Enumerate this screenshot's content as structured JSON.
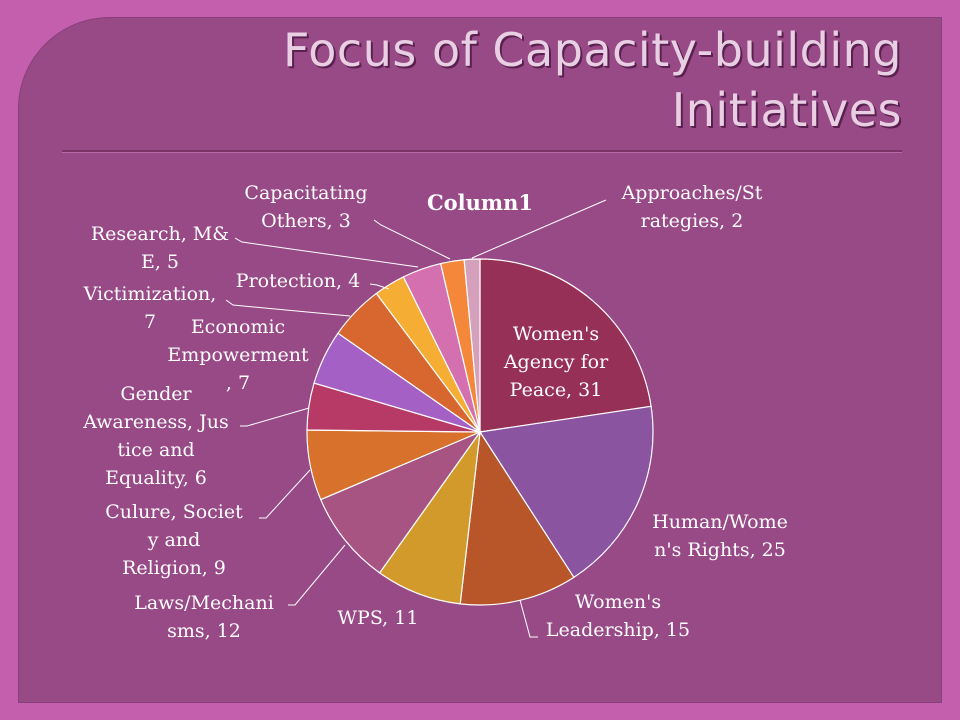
{
  "slide": {
    "title_line1": "Focus of Capacity-building",
    "title_line2": "Initiatives"
  },
  "chart_data": {
    "type": "pie",
    "title": "Column1",
    "slices": [
      {
        "label": "Women's Agency for Peace",
        "value": 31,
        "color": "#963057",
        "label_lines": [
          "Women's",
          "Agency for",
          "Peace, 31"
        ]
      },
      {
        "label": "Human/Women's Rights",
        "value": 25,
        "color": "#8a54a0",
        "label_lines": [
          "Human/Wome",
          "n's Rights, 25"
        ]
      },
      {
        "label": "Women's Leadership",
        "value": 15,
        "color": "#b85529",
        "label_lines": [
          "Women's",
          "Leadership, 15"
        ]
      },
      {
        "label": "WPS",
        "value": 11,
        "color": "#d29a2b",
        "label_lines": [
          "WPS, 11"
        ]
      },
      {
        "label": "Laws/Mechanisms",
        "value": 12,
        "color": "#a75483",
        "label_lines": [
          "Laws/Mechani",
          "sms, 12"
        ]
      },
      {
        "label": "Culure, Society and Religion",
        "value": 9,
        "color": "#d7712b",
        "label_lines": [
          "Culure, Societ",
          "y and",
          "Religion, 9"
        ]
      },
      {
        "label": "Gender Awareness, Justice and Equality",
        "value": 6,
        "color": "#b73a66",
        "label_lines": [
          "Gender",
          "Awareness, Jus",
          "tice and",
          "Equality, 6"
        ]
      },
      {
        "label": "Economic Empowerment",
        "value": 7,
        "color": "#a460c4",
        "label_lines": [
          "Economic",
          "Empowerment",
          ", 7"
        ]
      },
      {
        "label": "Victimization",
        "value": 7,
        "color": "#d7672f",
        "label_lines": [
          "Victimization,",
          "7"
        ]
      },
      {
        "label": "Protection",
        "value": 4,
        "color": "#f5ad33",
        "label_lines": [
          "Protection, 4"
        ]
      },
      {
        "label": "Research, M&E",
        "value": 5,
        "color": "#d46fb0",
        "label_lines": [
          "Research, M&",
          "E, 5"
        ]
      },
      {
        "label": "Capacitating Others",
        "value": 3,
        "color": "#f5873a",
        "label_lines": [
          "Capacitating",
          "Others, 3"
        ]
      },
      {
        "label": "Approaches/Strategies",
        "value": 2,
        "color": "#d4a0bb",
        "label_lines": [
          "Approaches/St",
          "rategies, 2"
        ]
      }
    ]
  }
}
